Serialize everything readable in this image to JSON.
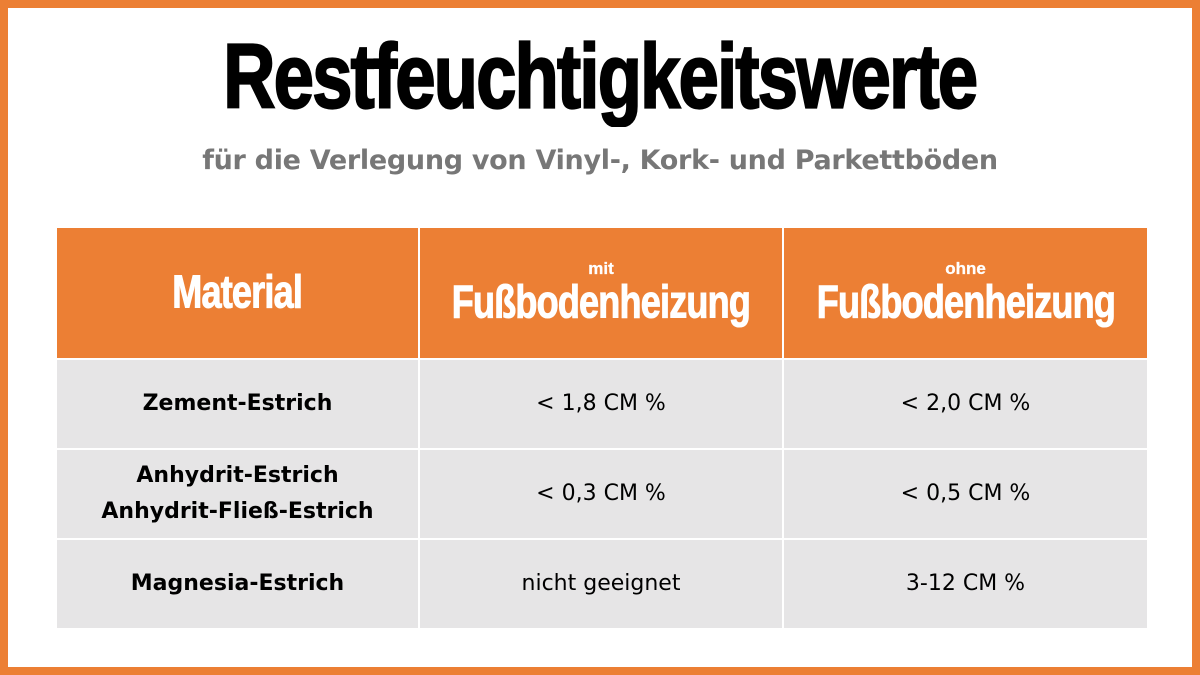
{
  "title": "Restfeuchtigkeitswerte",
  "subtitle": "für die Verlegung von Vinyl-, Kork- und Parkettböden",
  "colors": {
    "accent": "#EC7F34",
    "row_bg": "#E6E5E6",
    "subtitle": "#777777"
  },
  "table": {
    "headers": [
      {
        "small": "",
        "main": "Material"
      },
      {
        "small": "mit",
        "main": "Fußbodenheizung"
      },
      {
        "small": "ohne",
        "main": "Fußbodenheizung"
      }
    ],
    "rows": [
      {
        "material": [
          "Zement-Estrich"
        ],
        "mit": "< 1,8 CM %",
        "ohne": "< 2,0 CM %"
      },
      {
        "material": [
          "Anhydrit-Estrich",
          "Anhydrit-Fließ-Estrich"
        ],
        "mit": "< 0,3 CM %",
        "ohne": "< 0,5 CM %"
      },
      {
        "material": [
          "Magnesia-Estrich"
        ],
        "mit": "nicht geeignet",
        "ohne": "3-12 CM %"
      }
    ]
  }
}
